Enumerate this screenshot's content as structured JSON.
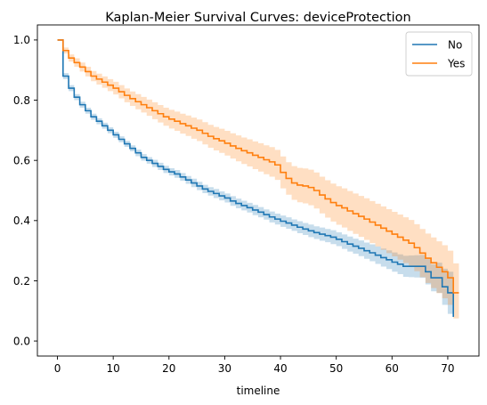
{
  "chart_data": {
    "type": "line",
    "title": "Kaplan-Meier Survival Curves: deviceProtection",
    "xlabel": "timeline",
    "ylabel": "",
    "xlim": [
      -3.6,
      75.6
    ],
    "ylim": [
      -0.05,
      1.05
    ],
    "xticks": [
      0,
      10,
      20,
      30,
      40,
      50,
      60,
      70
    ],
    "yticks": [
      0.0,
      0.2,
      0.4,
      0.6,
      0.8,
      1.0
    ],
    "grid": false,
    "legend": {
      "position": "top-right",
      "entries": [
        "No",
        "Yes"
      ]
    },
    "series": [
      {
        "name": "No",
        "color": "#1f77b4",
        "ci_color": "#1f77b4",
        "x": [
          0,
          1,
          2,
          3,
          4,
          5,
          6,
          7,
          8,
          9,
          10,
          11,
          12,
          13,
          14,
          15,
          16,
          17,
          18,
          19,
          20,
          21,
          22,
          23,
          24,
          25,
          26,
          27,
          28,
          29,
          30,
          31,
          32,
          33,
          34,
          35,
          36,
          37,
          38,
          39,
          40,
          41,
          42,
          43,
          44,
          45,
          46,
          47,
          48,
          49,
          50,
          51,
          52,
          53,
          54,
          55,
          56,
          57,
          58,
          59,
          60,
          61,
          62,
          63,
          64,
          65,
          66,
          67,
          68,
          69,
          70,
          71
        ],
        "y": [
          1.0,
          0.88,
          0.84,
          0.81,
          0.785,
          0.765,
          0.745,
          0.73,
          0.715,
          0.7,
          0.685,
          0.67,
          0.655,
          0.64,
          0.625,
          0.61,
          0.6,
          0.59,
          0.58,
          0.57,
          0.562,
          0.555,
          0.545,
          0.535,
          0.525,
          0.515,
          0.505,
          0.497,
          0.49,
          0.482,
          0.475,
          0.465,
          0.457,
          0.45,
          0.443,
          0.435,
          0.428,
          0.42,
          0.412,
          0.405,
          0.398,
          0.392,
          0.385,
          0.378,
          0.372,
          0.366,
          0.36,
          0.355,
          0.35,
          0.345,
          0.338,
          0.33,
          0.322,
          0.315,
          0.308,
          0.3,
          0.293,
          0.285,
          0.277,
          0.27,
          0.262,
          0.255,
          0.248,
          0.248,
          0.248,
          0.248,
          0.23,
          0.21,
          0.21,
          0.18,
          0.16,
          0.08
        ],
        "ci_lower": [
          1.0,
          0.87,
          0.83,
          0.8,
          0.775,
          0.755,
          0.735,
          0.72,
          0.705,
          0.69,
          0.675,
          0.66,
          0.645,
          0.63,
          0.614,
          0.599,
          0.589,
          0.578,
          0.568,
          0.558,
          0.55,
          0.542,
          0.532,
          0.522,
          0.511,
          0.501,
          0.491,
          0.483,
          0.475,
          0.467,
          0.46,
          0.449,
          0.441,
          0.434,
          0.427,
          0.418,
          0.411,
          0.403,
          0.394,
          0.387,
          0.379,
          0.373,
          0.366,
          0.358,
          0.352,
          0.345,
          0.339,
          0.333,
          0.328,
          0.322,
          0.315,
          0.306,
          0.297,
          0.29,
          0.282,
          0.273,
          0.265,
          0.256,
          0.247,
          0.239,
          0.23,
          0.222,
          0.213,
          0.212,
          0.211,
          0.21,
          0.188,
          0.165,
          0.16,
          0.12,
          0.09,
          0.01
        ],
        "ci_upper": [
          1.0,
          0.89,
          0.85,
          0.82,
          0.795,
          0.775,
          0.755,
          0.74,
          0.725,
          0.71,
          0.695,
          0.68,
          0.665,
          0.65,
          0.636,
          0.621,
          0.611,
          0.602,
          0.592,
          0.582,
          0.574,
          0.568,
          0.558,
          0.548,
          0.539,
          0.529,
          0.519,
          0.511,
          0.505,
          0.497,
          0.49,
          0.481,
          0.473,
          0.466,
          0.459,
          0.452,
          0.445,
          0.437,
          0.43,
          0.423,
          0.417,
          0.411,
          0.404,
          0.398,
          0.392,
          0.387,
          0.381,
          0.377,
          0.372,
          0.368,
          0.361,
          0.354,
          0.347,
          0.34,
          0.334,
          0.327,
          0.321,
          0.314,
          0.307,
          0.301,
          0.294,
          0.288,
          0.283,
          0.284,
          0.285,
          0.286,
          0.272,
          0.255,
          0.26,
          0.24,
          0.23,
          0.15
        ]
      },
      {
        "name": "Yes",
        "color": "#ff7f0e",
        "ci_color": "#ff7f0e",
        "x": [
          0,
          1,
          2,
          3,
          4,
          5,
          6,
          7,
          8,
          9,
          10,
          11,
          12,
          13,
          14,
          15,
          16,
          17,
          18,
          19,
          20,
          21,
          22,
          23,
          24,
          25,
          26,
          27,
          28,
          29,
          30,
          31,
          32,
          33,
          34,
          35,
          36,
          37,
          38,
          39,
          40,
          41,
          42,
          43,
          44,
          45,
          46,
          47,
          48,
          49,
          50,
          51,
          52,
          53,
          54,
          55,
          56,
          57,
          58,
          59,
          60,
          61,
          62,
          63,
          64,
          65,
          66,
          67,
          68,
          69,
          70,
          71,
          72
        ],
        "y": [
          1.0,
          0.965,
          0.94,
          0.925,
          0.91,
          0.895,
          0.88,
          0.87,
          0.86,
          0.85,
          0.84,
          0.828,
          0.816,
          0.805,
          0.795,
          0.785,
          0.775,
          0.765,
          0.755,
          0.745,
          0.737,
          0.73,
          0.722,
          0.715,
          0.707,
          0.7,
          0.69,
          0.68,
          0.672,
          0.665,
          0.657,
          0.648,
          0.64,
          0.632,
          0.625,
          0.617,
          0.61,
          0.602,
          0.595,
          0.585,
          0.56,
          0.54,
          0.525,
          0.518,
          0.515,
          0.51,
          0.5,
          0.485,
          0.472,
          0.46,
          0.45,
          0.442,
          0.432,
          0.423,
          0.414,
          0.405,
          0.395,
          0.385,
          0.375,
          0.365,
          0.355,
          0.345,
          0.335,
          0.325,
          0.31,
          0.292,
          0.275,
          0.26,
          0.245,
          0.23,
          0.21,
          0.16,
          0.16
        ],
        "ci_lower": [
          1.0,
          0.955,
          0.928,
          0.911,
          0.895,
          0.879,
          0.863,
          0.852,
          0.841,
          0.83,
          0.819,
          0.806,
          0.793,
          0.781,
          0.77,
          0.759,
          0.748,
          0.737,
          0.726,
          0.715,
          0.706,
          0.698,
          0.689,
          0.681,
          0.672,
          0.664,
          0.653,
          0.642,
          0.633,
          0.625,
          0.616,
          0.606,
          0.597,
          0.588,
          0.58,
          0.571,
          0.563,
          0.554,
          0.546,
          0.535,
          0.507,
          0.486,
          0.469,
          0.461,
          0.457,
          0.451,
          0.44,
          0.424,
          0.41,
          0.397,
          0.386,
          0.377,
          0.366,
          0.356,
          0.346,
          0.336,
          0.325,
          0.314,
          0.303,
          0.292,
          0.281,
          0.27,
          0.259,
          0.248,
          0.232,
          0.212,
          0.193,
          0.176,
          0.159,
          0.142,
          0.12,
          0.075,
          0.075
        ],
        "ci_upper": [
          1.0,
          0.975,
          0.952,
          0.939,
          0.925,
          0.911,
          0.897,
          0.888,
          0.879,
          0.87,
          0.861,
          0.85,
          0.839,
          0.829,
          0.82,
          0.811,
          0.802,
          0.793,
          0.784,
          0.775,
          0.768,
          0.762,
          0.755,
          0.749,
          0.742,
          0.736,
          0.727,
          0.718,
          0.711,
          0.705,
          0.698,
          0.69,
          0.683,
          0.676,
          0.67,
          0.663,
          0.657,
          0.65,
          0.644,
          0.635,
          0.613,
          0.594,
          0.581,
          0.575,
          0.573,
          0.569,
          0.56,
          0.546,
          0.534,
          0.523,
          0.514,
          0.507,
          0.498,
          0.49,
          0.482,
          0.474,
          0.465,
          0.456,
          0.447,
          0.438,
          0.429,
          0.42,
          0.411,
          0.402,
          0.388,
          0.372,
          0.357,
          0.344,
          0.331,
          0.318,
          0.3,
          0.258,
          0.258
        ]
      }
    ]
  }
}
